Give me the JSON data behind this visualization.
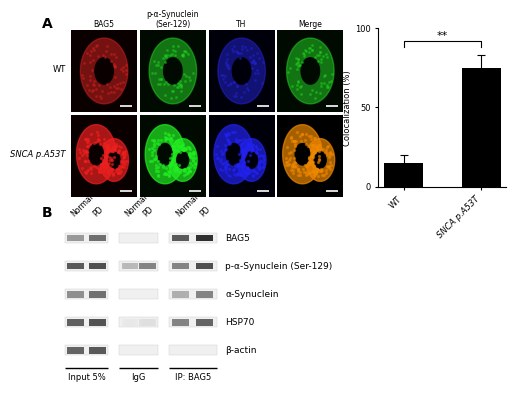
{
  "panel_A_label": "A",
  "panel_B_label": "B",
  "bar_categories": [
    "WT",
    "SNCA p.A53T"
  ],
  "bar_values": [
    15,
    75
  ],
  "bar_errors": [
    5,
    8
  ],
  "bar_color": "#000000",
  "ylabel": "Colocalization (%)",
  "ylim": [
    0,
    100
  ],
  "yticks": [
    0,
    50,
    100
  ],
  "significance": "**",
  "col_labels": [
    "BAG5",
    "p-α-Synuclein\n(Ser-129)",
    "TH",
    "Merge"
  ],
  "row_labels": [
    "WT",
    "SNCA p.A53T"
  ],
  "mic_bg_colors": [
    [
      "#0a0000",
      "#000a00",
      "#00000a",
      "#000a00"
    ],
    [
      "#0a0000",
      "#000a00",
      "#00000a",
      "#000000"
    ]
  ],
  "mic_cell_colors_outer": [
    [
      "#8B1010",
      "#1a6b1a",
      "#1a1a8B",
      "#1a5a1a"
    ],
    [
      "#CC1010",
      "#1a8b1a",
      "#1a1aAA",
      "#8B6000"
    ]
  ],
  "mic_cell_colors_inner": [
    [
      "#cc2020",
      "#22cc22",
      "#2222cc",
      "#22cc22"
    ],
    [
      "#ee2020",
      "#22ee22",
      "#2222ee",
      "#ee8800"
    ]
  ],
  "wb_labels": [
    "BAG5",
    "p-α-Synuclein (Ser-129)",
    "α-Synuclein",
    "HSP70",
    "β-actin"
  ],
  "wb_groups": [
    "Input 5%",
    "IgG",
    "IP: BAG5"
  ],
  "wb_group_cols": [
    "Normal",
    "PD",
    "Normal",
    "PD",
    "Normal",
    "PD"
  ],
  "band_intensities": [
    [
      0.45,
      0.65,
      0.0,
      0.0,
      0.75,
      0.95
    ],
    [
      0.75,
      0.8,
      0.3,
      0.55,
      0.55,
      0.8
    ],
    [
      0.5,
      0.65,
      0.0,
      0.0,
      0.35,
      0.55
    ],
    [
      0.72,
      0.78,
      0.08,
      0.12,
      0.55,
      0.7
    ],
    [
      0.7,
      0.75,
      0.0,
      0.0,
      0.0,
      0.0
    ]
  ],
  "background_color": "#ffffff"
}
